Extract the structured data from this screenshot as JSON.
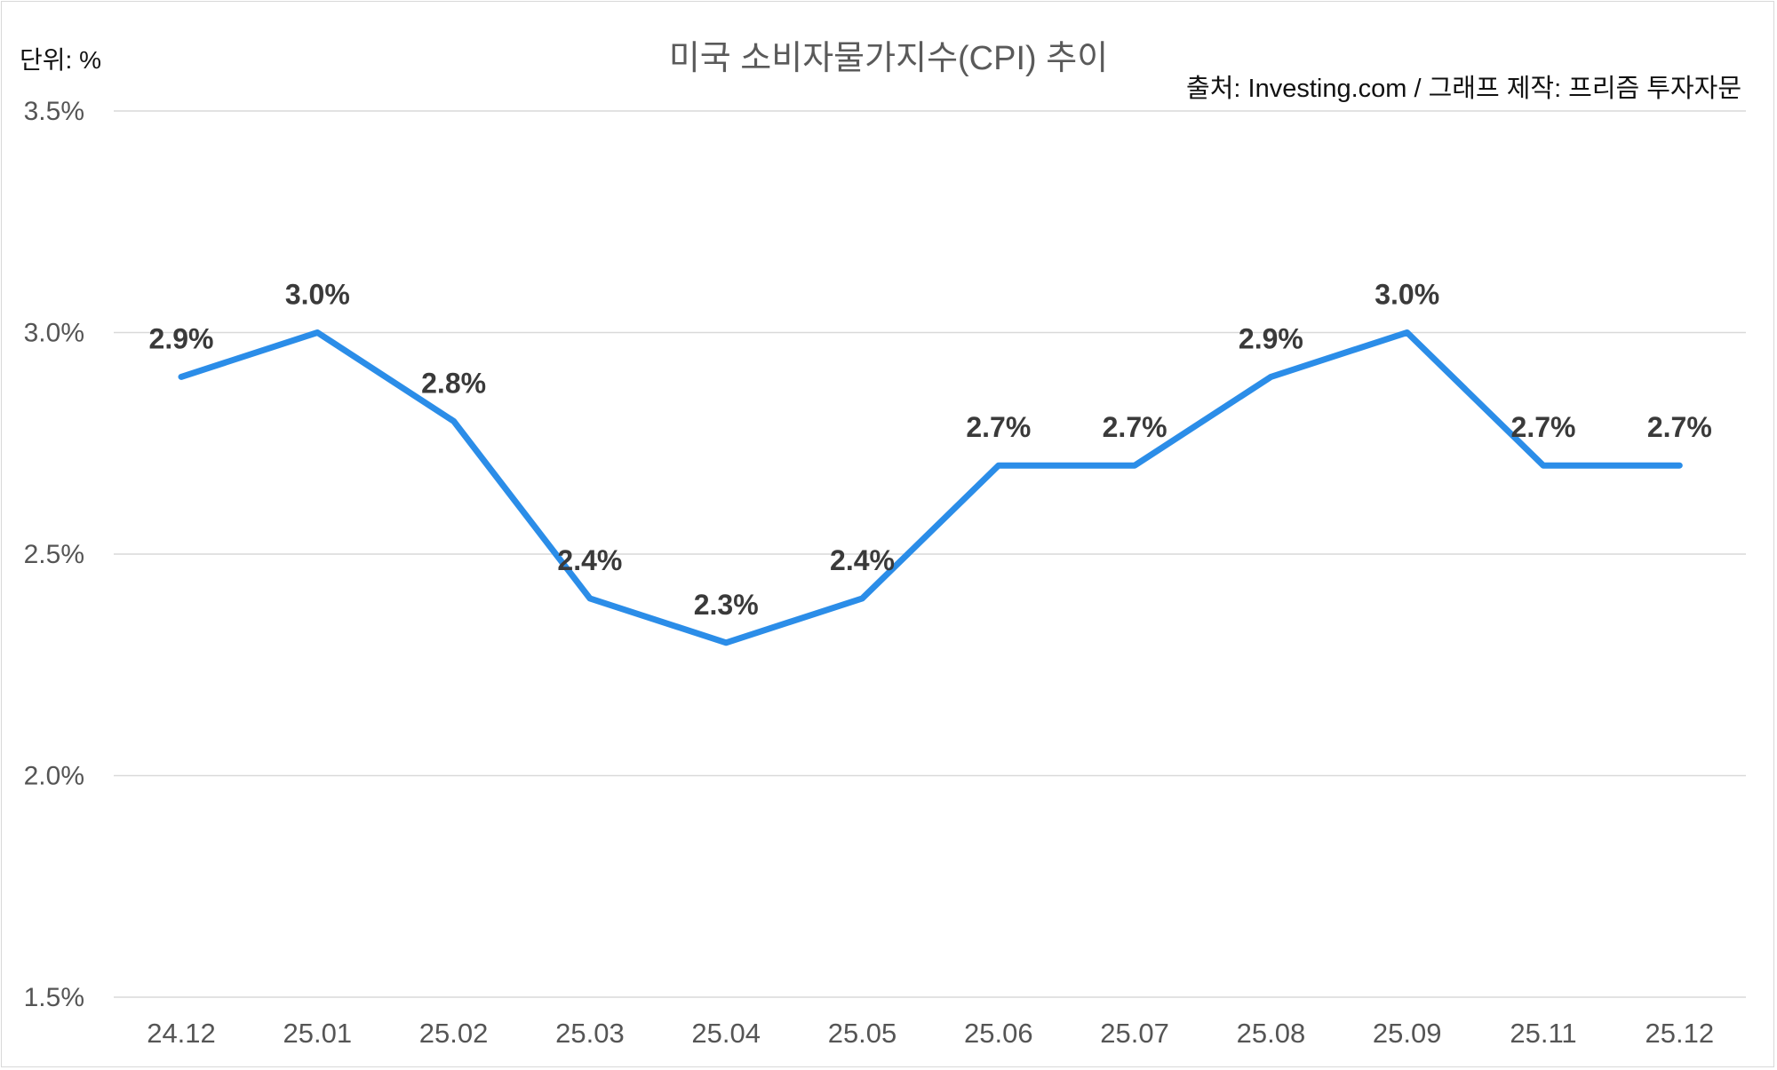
{
  "header": {
    "unit_label": "단위: %",
    "source_label": "출처: Investing.com / 그래프 제작: 프리즘 투자자문"
  },
  "chart_data": {
    "type": "line",
    "title": "미국 소비자물가지수(CPI) 추이",
    "categories": [
      "24.12",
      "25.01",
      "25.02",
      "25.03",
      "25.04",
      "25.05",
      "25.06",
      "25.07",
      "25.08",
      "25.09",
      "25.11",
      "25.12"
    ],
    "series": [
      {
        "values": [
          2.9,
          3.0,
          2.8,
          2.4,
          2.3,
          2.4,
          2.7,
          2.7,
          2.9,
          3.0,
          2.7,
          2.7
        ],
        "color": "#2b8de8",
        "data_labels": [
          "2.9%",
          "3.0%",
          "2.8%",
          "2.4%",
          "2.3%",
          "2.4%",
          "2.7%",
          "2.7%",
          "2.9%",
          "3.0%",
          "2.7%",
          "2.7%"
        ]
      }
    ],
    "ylim": [
      1.5,
      3.5
    ],
    "yticks": [
      1.5,
      2.0,
      2.5,
      3.0,
      3.5
    ],
    "ytick_labels": [
      "1.5%",
      "2.0%",
      "2.5%",
      "3.0%",
      "3.5%"
    ],
    "grid": true,
    "colors": {
      "line": "#2b8de8",
      "grid": "#d9d9d9",
      "label": "#3a3a3a",
      "axis_text": "#555555"
    }
  }
}
